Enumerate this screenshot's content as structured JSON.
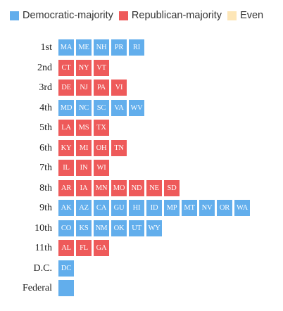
{
  "legend": {
    "democratic_label": "Democratic-majority",
    "republican_label": "Republican-majority",
    "even_label": "Even"
  },
  "colors": {
    "democratic": "#62aeec",
    "republican": "#ee5a5a",
    "even": "#fde6b7"
  },
  "chart_data": {
    "type": "table",
    "series": [
      {
        "name": "Democratic-majority",
        "key": "D"
      },
      {
        "name": "Republican-majority",
        "key": "R"
      },
      {
        "name": "Even",
        "key": "E"
      }
    ],
    "rows": [
      {
        "label": "1st",
        "tiles": [
          {
            "text": "MA",
            "party": "D"
          },
          {
            "text": "ME",
            "party": "D"
          },
          {
            "text": "NH",
            "party": "D"
          },
          {
            "text": "PR",
            "party": "D"
          },
          {
            "text": "RI",
            "party": "D"
          }
        ]
      },
      {
        "label": "2nd",
        "tiles": [
          {
            "text": "CT",
            "party": "R"
          },
          {
            "text": "NY",
            "party": "R"
          },
          {
            "text": "VT",
            "party": "R"
          }
        ]
      },
      {
        "label": "3rd",
        "tiles": [
          {
            "text": "DE",
            "party": "R"
          },
          {
            "text": "NJ",
            "party": "R"
          },
          {
            "text": "PA",
            "party": "R"
          },
          {
            "text": "VI",
            "party": "R"
          }
        ]
      },
      {
        "label": "4th",
        "tiles": [
          {
            "text": "MD",
            "party": "D"
          },
          {
            "text": "NC",
            "party": "D"
          },
          {
            "text": "SC",
            "party": "D"
          },
          {
            "text": "VA",
            "party": "D"
          },
          {
            "text": "WV",
            "party": "D"
          }
        ]
      },
      {
        "label": "5th",
        "tiles": [
          {
            "text": "LA",
            "party": "R"
          },
          {
            "text": "MS",
            "party": "R"
          },
          {
            "text": "TX",
            "party": "R"
          }
        ]
      },
      {
        "label": "6th",
        "tiles": [
          {
            "text": "KY",
            "party": "R"
          },
          {
            "text": "MI",
            "party": "R"
          },
          {
            "text": "OH",
            "party": "R"
          },
          {
            "text": "TN",
            "party": "R"
          }
        ]
      },
      {
        "label": "7th",
        "tiles": [
          {
            "text": "IL",
            "party": "R"
          },
          {
            "text": "IN",
            "party": "R"
          },
          {
            "text": "WI",
            "party": "R"
          }
        ]
      },
      {
        "label": "8th",
        "tiles": [
          {
            "text": "AR",
            "party": "R"
          },
          {
            "text": "IA",
            "party": "R"
          },
          {
            "text": "MN",
            "party": "R"
          },
          {
            "text": "MO",
            "party": "R"
          },
          {
            "text": "ND",
            "party": "R"
          },
          {
            "text": "NE",
            "party": "R"
          },
          {
            "text": "SD",
            "party": "R"
          }
        ]
      },
      {
        "label": "9th",
        "tiles": [
          {
            "text": "AK",
            "party": "D"
          },
          {
            "text": "AZ",
            "party": "D"
          },
          {
            "text": "CA",
            "party": "D"
          },
          {
            "text": "GU",
            "party": "D"
          },
          {
            "text": "HI",
            "party": "D"
          },
          {
            "text": "ID",
            "party": "D"
          },
          {
            "text": "MP",
            "party": "D"
          },
          {
            "text": "MT",
            "party": "D"
          },
          {
            "text": "NV",
            "party": "D"
          },
          {
            "text": "OR",
            "party": "D"
          },
          {
            "text": "WA",
            "party": "D"
          }
        ]
      },
      {
        "label": "10th",
        "tiles": [
          {
            "text": "CO",
            "party": "D"
          },
          {
            "text": "KS",
            "party": "D"
          },
          {
            "text": "NM",
            "party": "D"
          },
          {
            "text": "OK",
            "party": "D"
          },
          {
            "text": "UT",
            "party": "D"
          },
          {
            "text": "WY",
            "party": "D"
          }
        ]
      },
      {
        "label": "11th",
        "tiles": [
          {
            "text": "AL",
            "party": "R"
          },
          {
            "text": "FL",
            "party": "R"
          },
          {
            "text": "GA",
            "party": "R"
          }
        ]
      },
      {
        "label": "D.C.",
        "tiles": [
          {
            "text": "DC",
            "party": "D"
          }
        ]
      },
      {
        "label": "Federal",
        "tiles": [
          {
            "text": "",
            "party": "D"
          }
        ]
      }
    ]
  }
}
